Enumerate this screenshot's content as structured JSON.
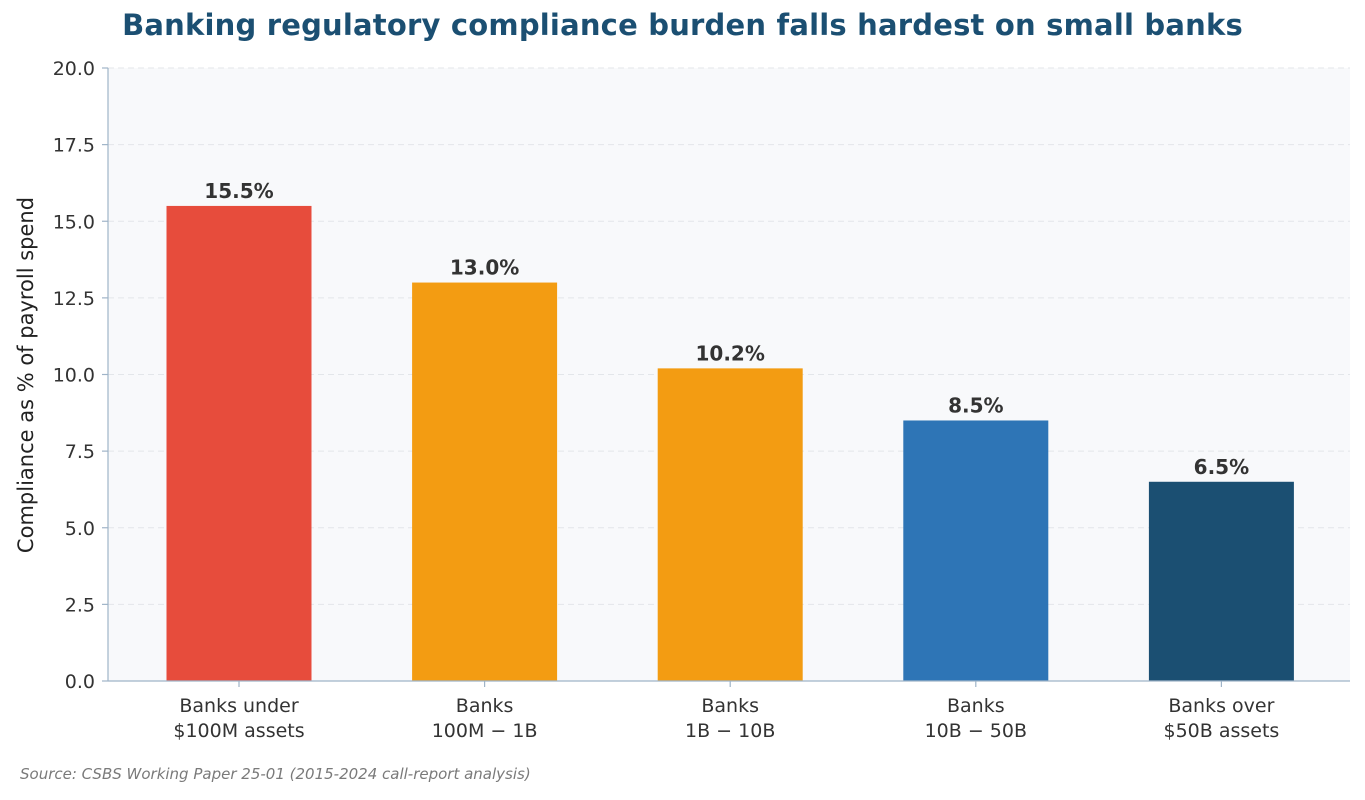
{
  "chart_data": {
    "type": "bar",
    "title": "Banking regulatory compliance burden falls hardest on small banks",
    "ylabel": "Compliance as % of payroll spend",
    "xlabel": "",
    "categories": [
      [
        "Banks under",
        "$100M assets"
      ],
      [
        "Banks",
        "100M − 1B"
      ],
      [
        "Banks",
        "1B − 10B"
      ],
      [
        "Banks",
        "10B − 50B"
      ],
      [
        "Banks over",
        "$50B assets"
      ]
    ],
    "values": [
      15.5,
      13.0,
      10.2,
      8.5,
      6.5
    ],
    "value_labels": [
      "15.5%",
      "13.0%",
      "10.2%",
      "8.5%",
      "6.5%"
    ],
    "colors": [
      "#e74c3c",
      "#f39c12",
      "#f39c12",
      "#2e75b6",
      "#1b4f72"
    ],
    "ylim": [
      0,
      20
    ],
    "yticks": [
      0.0,
      2.5,
      5.0,
      7.5,
      10.0,
      12.5,
      15.0,
      17.5,
      20.0
    ],
    "ytick_labels": [
      "0.0",
      "2.5",
      "5.0",
      "7.5",
      "10.0",
      "12.5",
      "15.0",
      "17.5",
      "20.0"
    ],
    "grid": true,
    "legend": "none"
  },
  "source": "Source: CSBS Working Paper 25-01 (2015-2024 call-report analysis)"
}
